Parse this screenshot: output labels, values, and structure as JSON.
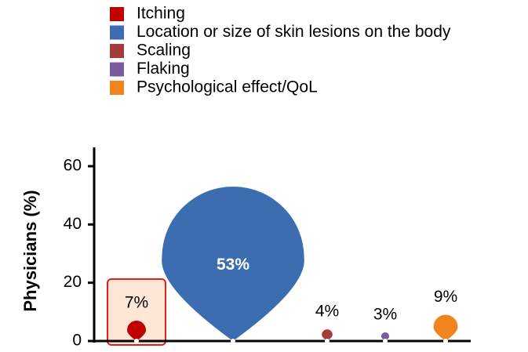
{
  "chart_data": {
    "type": "drop",
    "categories": [
      "Itching",
      "Location or size of skin lesions on the body",
      "Scaling",
      "Flaking",
      "Psychological effect/QoL"
    ],
    "values": [
      7,
      53,
      4,
      3,
      9
    ],
    "value_labels": [
      "7%",
      "53%",
      "4%",
      "3%",
      "9%"
    ],
    "colors": [
      "#c00000",
      "#3b6db0",
      "#a43c3c",
      "#7b5aa0",
      "#f0841e"
    ],
    "ylabel": "Physicians (%)",
    "ylim": [
      0,
      60
    ],
    "yticks": [
      0,
      20,
      40,
      60
    ],
    "grid": false
  }
}
